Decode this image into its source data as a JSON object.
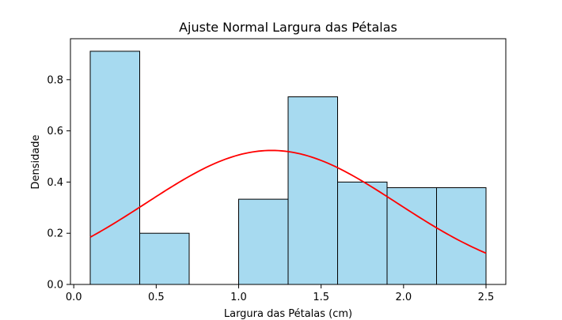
{
  "chart_data": {
    "type": "bar",
    "title": "Ajuste Normal Largura das Pétalas",
    "xlabel": "Largura das Pétalas (cm)",
    "ylabel": "Densidade",
    "xlim": [
      -0.02,
      2.62
    ],
    "ylim": [
      0,
      0.96
    ],
    "x_ticks": [
      0.0,
      0.5,
      1.0,
      1.5,
      2.0,
      2.5
    ],
    "x_tick_labels": [
      "0.0",
      "0.5",
      "1.0",
      "1.5",
      "2.0",
      "2.5"
    ],
    "y_ticks": [
      0.0,
      0.2,
      0.4,
      0.6,
      0.8
    ],
    "y_tick_labels": [
      "0.0",
      "0.2",
      "0.4",
      "0.6",
      "0.8"
    ],
    "bins": [
      {
        "x0": 0.1,
        "x1": 0.4,
        "value": 0.911
      },
      {
        "x0": 0.4,
        "x1": 0.7,
        "value": 0.2
      },
      {
        "x0": 0.7,
        "x1": 1.0,
        "value": 0.0
      },
      {
        "x0": 1.0,
        "x1": 1.3,
        "value": 0.333
      },
      {
        "x0": 1.3,
        "x1": 1.6,
        "value": 0.733
      },
      {
        "x0": 1.6,
        "x1": 1.9,
        "value": 0.4
      },
      {
        "x0": 1.9,
        "x1": 2.2,
        "value": 0.378
      },
      {
        "x0": 2.2,
        "x1": 2.5,
        "value": 0.378
      }
    ],
    "normal_fit": {
      "mean": 1.2,
      "std": 0.762,
      "x_range": [
        0.1,
        2.5
      ]
    },
    "grid": false,
    "colors": {
      "bar_fill": "#a7daf0",
      "bar_edge": "#000000",
      "curve": "#ff0000"
    }
  }
}
